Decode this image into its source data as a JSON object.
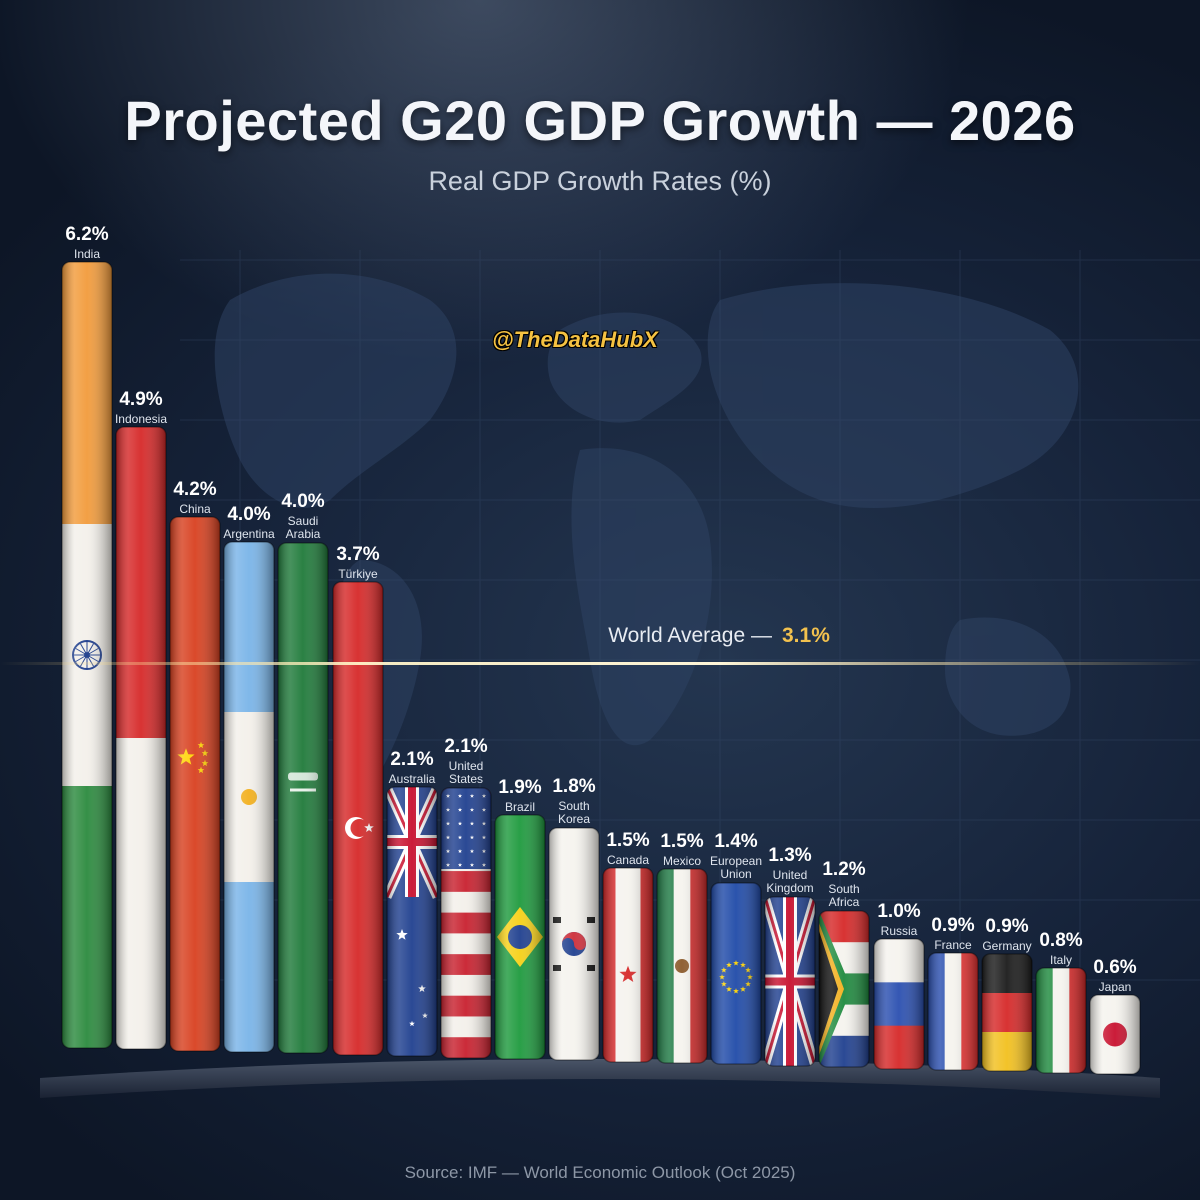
{
  "title": "Projected G20 GDP Growth — 2026",
  "subtitle": "Real GDP Growth Rates (%)",
  "watermark": "@TheDataHubX",
  "source": "Source: IMF — World Economic Outlook (Oct 2025)",
  "chart_data": {
    "type": "bar",
    "title": "Projected G20 GDP Growth — 2026",
    "subtitle": "Real GDP Growth Rates (%)",
    "xlabel": "",
    "ylabel": "",
    "ylim": [
      0,
      6.2
    ],
    "grid": false,
    "categories": [
      "India",
      "Indonesia",
      "China",
      "Argentina",
      "Saudi Arabia",
      "Türkiye",
      "Australia",
      "United States",
      "Brazil",
      "South Korea",
      "Canada",
      "Mexico",
      "European Union",
      "United Kingdom",
      "South Africa",
      "Russia",
      "France",
      "Germany",
      "Italy",
      "Japan"
    ],
    "values": [
      6.2,
      4.9,
      4.2,
      4.0,
      4.0,
      3.7,
      2.1,
      2.1,
      1.9,
      1.8,
      1.5,
      1.5,
      1.4,
      1.3,
      1.2,
      1.0,
      0.9,
      0.9,
      0.8,
      0.6
    ],
    "value_labels": [
      "6.2%",
      "4.9%",
      "4.2%",
      "4.0%",
      "4.0%",
      "3.7%",
      "2.1%",
      "2.1%",
      "1.9%",
      "1.8%",
      "1.5%",
      "1.5%",
      "1.4%",
      "1.3%",
      "1.2%",
      "1.0%",
      "0.9%",
      "0.9%",
      "0.8%",
      "0.6%"
    ],
    "reference_line": {
      "label": "World Average —",
      "value_label": "3.1%",
      "value": 3.1
    }
  },
  "colors": {
    "accent": "#f2c14e",
    "background": "#16233a"
  }
}
